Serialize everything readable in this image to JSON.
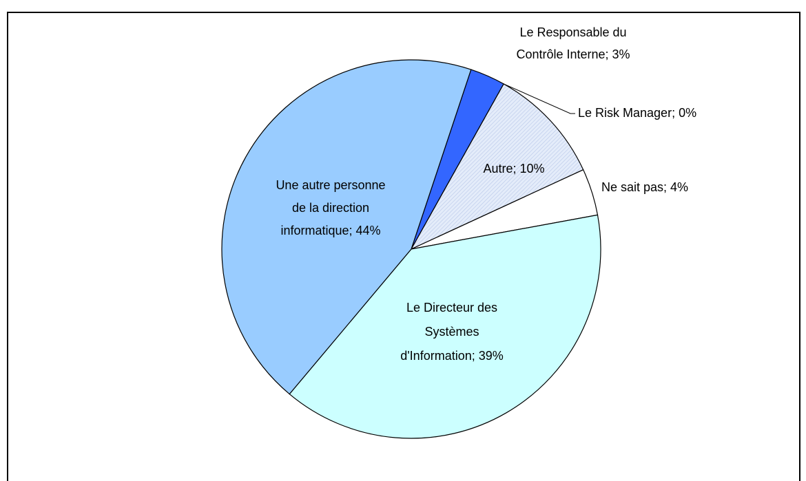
{
  "chart_data": {
    "type": "pie",
    "categories": [
      "Le Responsable du Contrôle Interne",
      "Le Risk Manager",
      "Autre",
      "Ne sait pas",
      "Le Directeur des Systèmes d'Information",
      "Une autre personne de la direction informatique"
    ],
    "values": [
      3,
      0,
      10,
      4,
      39,
      44
    ],
    "labels": [
      [
        "Le Responsable du",
        "Contrôle Interne; 3%"
      ],
      [
        "Le Risk Manager; 0%"
      ],
      [
        "Autre; 10%"
      ],
      [
        "Ne sait pas; 4%"
      ],
      [
        "Le Directeur des",
        "Systèmes",
        "d'Information; 39%"
      ],
      [
        "Une autre personne",
        "de la direction",
        "informatique; 44%"
      ]
    ],
    "colors": [
      "#3366ff",
      "#333399",
      "url(#hatch)",
      "#ffffff",
      "#ccffff",
      "#99ccff"
    ]
  }
}
